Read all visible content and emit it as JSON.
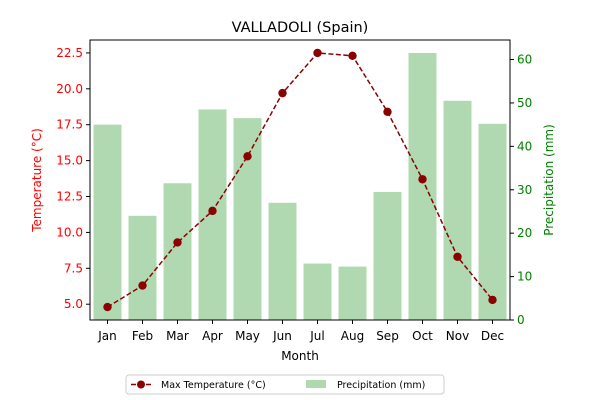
{
  "chart_data": {
    "type": "bar+line",
    "title": "VALLADOLI (Spain)",
    "xlabel": "Month",
    "ylabel_left": "Temperature (°C)",
    "ylabel_right": "Precipitation (mm)",
    "categories": [
      "Jan",
      "Feb",
      "Mar",
      "Apr",
      "May",
      "Jun",
      "Jul",
      "Aug",
      "Sep",
      "Oct",
      "Nov",
      "Dec"
    ],
    "ylim_left": [
      3.9,
      23.4
    ],
    "yticks_left": [
      "5.0",
      "7.5",
      "10.0",
      "12.5",
      "15.0",
      "17.5",
      "20.0",
      "22.5"
    ],
    "ylim_right": [
      0,
      64.5
    ],
    "yticks_right": [
      "0",
      "10",
      "20",
      "30",
      "40",
      "50",
      "60"
    ],
    "series": [
      {
        "name": "Max Temperature (°C)",
        "type": "line",
        "axis": "left",
        "values": [
          4.8,
          6.3,
          9.3,
          11.5,
          15.3,
          19.7,
          22.5,
          22.3,
          18.4,
          13.7,
          8.3,
          5.3
        ]
      },
      {
        "name": "Precipitation (mm)",
        "type": "bar",
        "axis": "right",
        "values": [
          45,
          24,
          31.5,
          48.5,
          46.5,
          27,
          13,
          12.3,
          29.5,
          61.5,
          50.5,
          45.2
        ]
      }
    ],
    "legend_position": "bottom-center",
    "grid": false,
    "colors": {
      "line": "#8b0000",
      "bar": "#b0d9b1",
      "left_axis": "#ff0000",
      "right_axis": "#008000",
      "text": "#000000"
    }
  }
}
